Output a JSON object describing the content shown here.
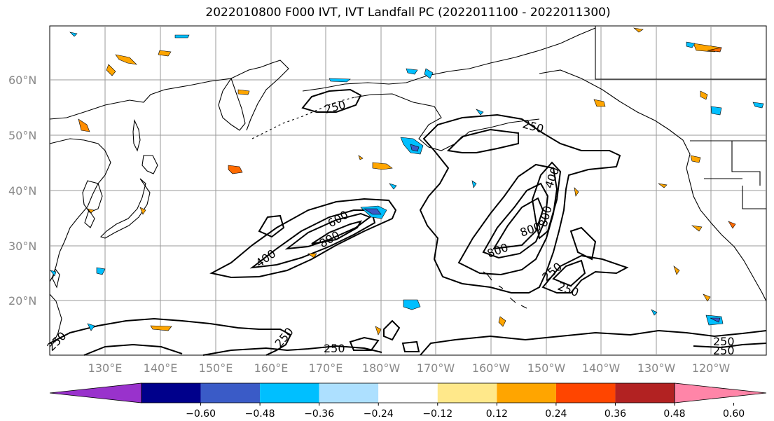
{
  "title": "2022010800 F000 IVT, IVT Landfall PC (2022011100 - 2022011300)",
  "latitude_labels": [
    "60°N",
    "50°N",
    "40°N",
    "30°N",
    "20°N"
  ],
  "longitude_labels": [
    "130°E",
    "140°E",
    "150°E",
    "160°E",
    "170°E",
    "180°W",
    "170°W",
    "160°W",
    "150°W",
    "140°W",
    "130°W",
    "120°W"
  ],
  "colorbar": {
    "ticks": [
      "−0.60",
      "−0.48",
      "−0.36",
      "−0.24",
      "−0.12",
      "0.12",
      "0.24",
      "0.36",
      "0.48",
      "0.60"
    ],
    "colors": [
      "#9932CC",
      "#00008B",
      "#3A5BC7",
      "#00BFFF",
      "#ADE0FF",
      "#FFFFFF",
      "#FFE88A",
      "#FFA500",
      "#FF4500",
      "#B22222",
      "#FF85A8"
    ]
  },
  "contour_labels": [
    "250",
    "250",
    "400",
    "600",
    "800",
    "400",
    "800",
    "800",
    "800",
    "250",
    "250",
    "250",
    "250",
    "250",
    "250",
    "250"
  ]
}
